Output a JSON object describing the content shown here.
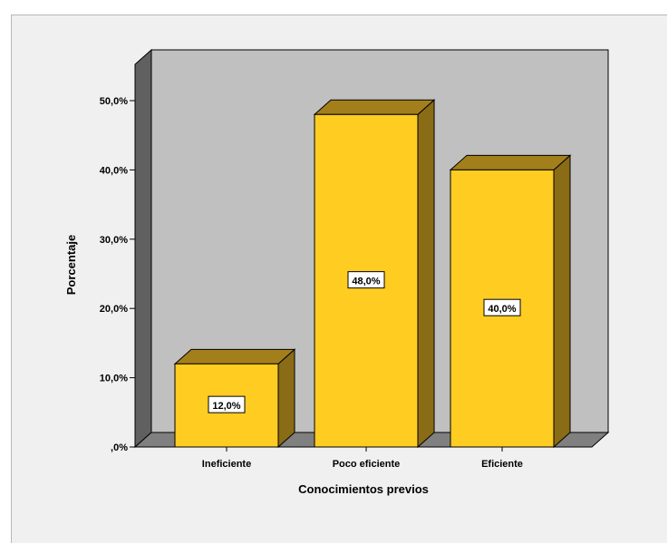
{
  "chart_data": {
    "type": "bar",
    "style": "3d",
    "categories": [
      "Ineficiente",
      "Poco eficiente",
      "Eficiente"
    ],
    "values": [
      12.0,
      48.0,
      40.0
    ],
    "data_labels": [
      "12,0%",
      "48,0%",
      "40,0%"
    ],
    "xlabel": "Conocimientos previos",
    "ylabel": "Porcentaje",
    "ylim": [
      0,
      50
    ],
    "yticks": [
      0,
      10,
      20,
      30,
      40,
      50
    ],
    "ytick_labels": [
      ",0%",
      "10,0%",
      "20,0%",
      "30,0%",
      "40,0%",
      "50,0%"
    ],
    "grid": false,
    "legend": "none",
    "colors": {
      "bar_front": "#ffcc22",
      "bar_top": "#a37f1c",
      "bar_side": "#8a6b16",
      "wall": "#c0c0c0",
      "floor": "#808080",
      "left_wall": "#606060",
      "frame": "#f0f0f0"
    }
  }
}
